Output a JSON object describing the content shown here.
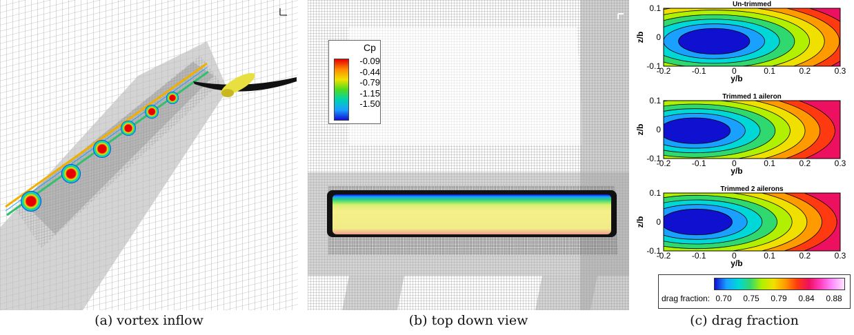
{
  "captions": {
    "a": "(a) vortex inflow",
    "b": "(b) top down view",
    "c": "(c) drag fraction"
  },
  "cp_legend": {
    "title": "Cp",
    "ticks": [
      "-0.09",
      "-0.44",
      "-0.79",
      "-1.15",
      "-1.50"
    ]
  },
  "drag_plots": [
    {
      "title": "Un-trimmed"
    },
    {
      "title": "Trimmed 1 aileron"
    },
    {
      "title": "Trimmed 2 ailerons"
    }
  ],
  "drag_axes": {
    "xlabel": "y/b",
    "ylabel": "z/b",
    "xticks": [
      "-0.2",
      "-0.1",
      "0",
      "0.1",
      "0.2",
      "0.3"
    ],
    "yticks": [
      "0.1",
      "0",
      "-0.1"
    ]
  },
  "drag_legend": {
    "label": "drag fraction:",
    "ticks": [
      "0.70",
      "0.75",
      "0.79",
      "0.84",
      "0.88"
    ]
  },
  "colors": {
    "hot": "#e60000",
    "cold": "#1010d0",
    "mesh": "#8a8a8a",
    "magenta": "#ff40c0"
  }
}
